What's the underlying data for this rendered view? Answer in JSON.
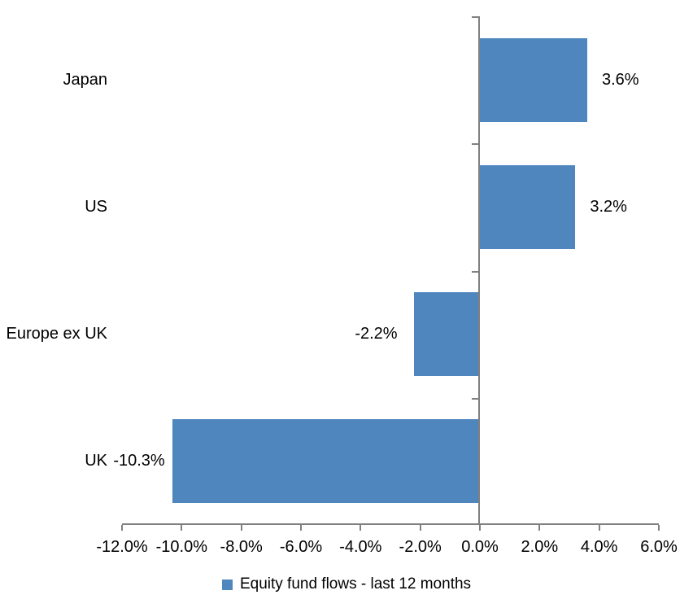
{
  "chart_data": {
    "type": "bar",
    "orientation": "horizontal",
    "categories": [
      "Japan",
      "US",
      "Europe ex UK",
      "UK"
    ],
    "series": [
      {
        "name": "Equity fund flows - last 12 months",
        "values": [
          3.6,
          3.2,
          -2.2,
          -10.3
        ]
      }
    ],
    "value_labels": [
      "3.6%",
      "3.2%",
      "-2.2%",
      "-10.3%"
    ],
    "title": "",
    "xlabel": "",
    "ylabel": "",
    "x_axis": {
      "min": -12,
      "max": 6,
      "step": 2,
      "tick_labels": [
        "-12.0%",
        "-10.0%",
        "-8.0%",
        "-6.0%",
        "-4.0%",
        "-2.0%",
        "0.0%",
        "2.0%",
        "4.0%",
        "6.0%"
      ]
    },
    "grid": false,
    "legend": {
      "position": "bottom",
      "label": "Equity fund flows - last 12 months"
    },
    "colors": {
      "bar": "#4F86BE",
      "axis": "#808080",
      "text": "#000000",
      "background": "#FFFFFF"
    }
  }
}
